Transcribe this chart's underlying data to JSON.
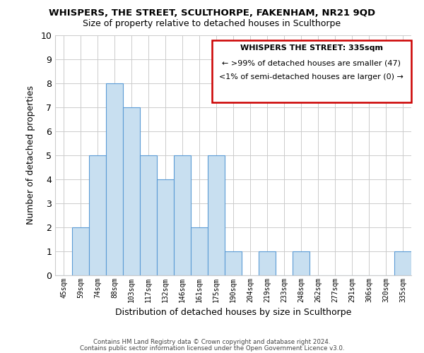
{
  "title": "WHISPERS, THE STREET, SCULTHORPE, FAKENHAM, NR21 9QD",
  "subtitle": "Size of property relative to detached houses in Sculthorpe",
  "xlabel": "Distribution of detached houses by size in Sculthorpe",
  "ylabel": "Number of detached properties",
  "bin_labels": [
    "45sqm",
    "59sqm",
    "74sqm",
    "88sqm",
    "103sqm",
    "117sqm",
    "132sqm",
    "146sqm",
    "161sqm",
    "175sqm",
    "190sqm",
    "204sqm",
    "219sqm",
    "233sqm",
    "248sqm",
    "262sqm",
    "277sqm",
    "291sqm",
    "306sqm",
    "320sqm",
    "335sqm"
  ],
  "values": [
    0,
    2,
    5,
    8,
    7,
    5,
    4,
    5,
    2,
    5,
    1,
    0,
    1,
    0,
    1,
    0,
    0,
    0,
    0,
    0,
    1
  ],
  "bar_color": "#c8dff0",
  "bar_edge_color": "#5b9bd5",
  "ylim": [
    0,
    10
  ],
  "yticks": [
    0,
    1,
    2,
    3,
    4,
    5,
    6,
    7,
    8,
    9,
    10
  ],
  "legend_title": "WHISPERS THE STREET: 335sqm",
  "legend_line1": "← >99% of detached houses are smaller (47)",
  "legend_line2": "<1% of semi-detached houses are larger (0) →",
  "legend_box_color": "#cc0000",
  "footer_line1": "Contains HM Land Registry data © Crown copyright and database right 2024.",
  "footer_line2": "Contains public sector information licensed under the Open Government Licence v3.0.",
  "grid_color": "#cccccc",
  "background_color": "#ffffff"
}
